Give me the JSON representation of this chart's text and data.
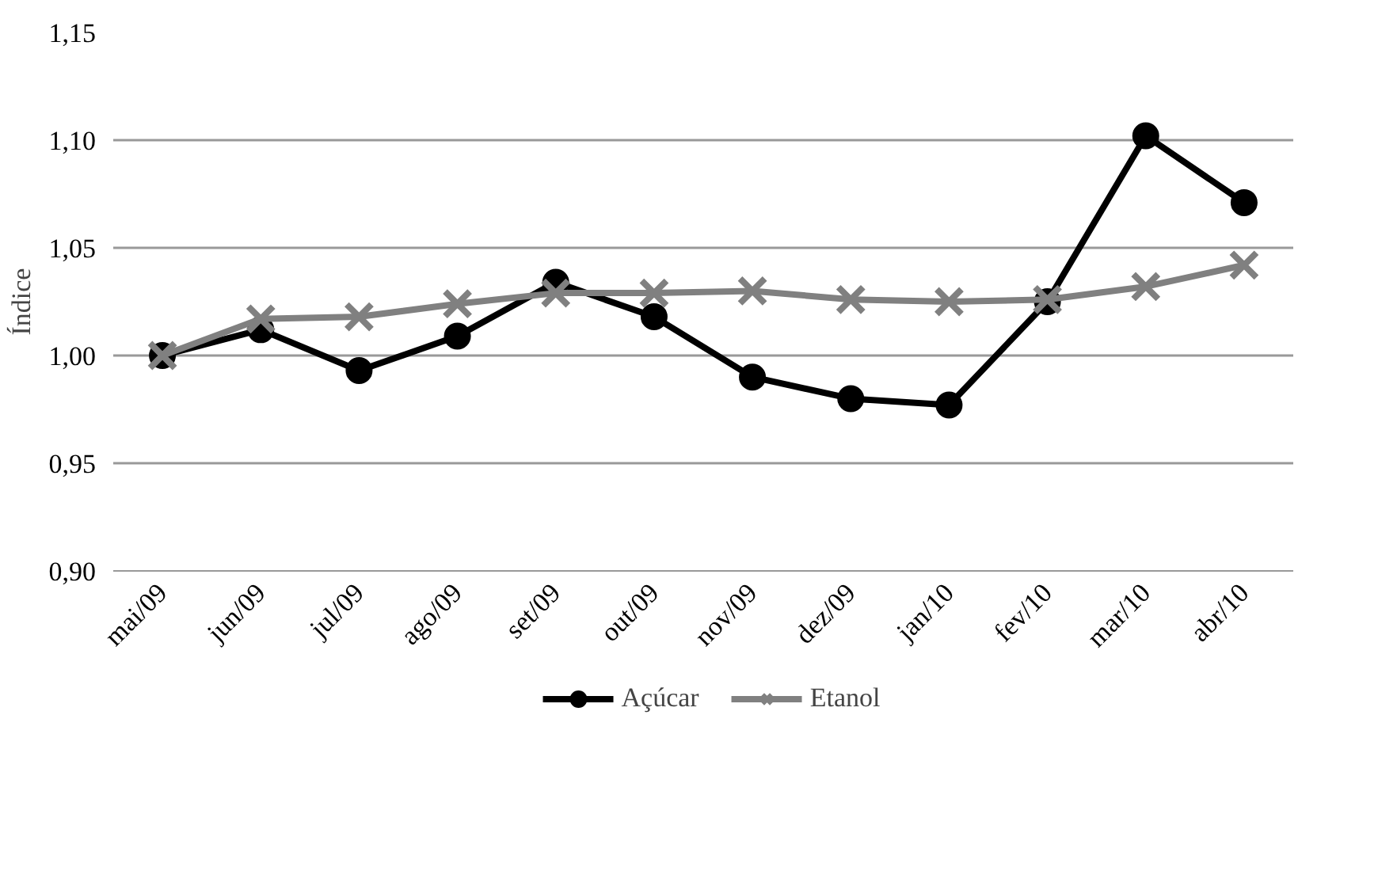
{
  "chart_data": {
    "type": "line",
    "ylabel": "Índice",
    "categories": [
      "mai/09",
      "jun/09",
      "jul/09",
      "ago/09",
      "set/09",
      "out/09",
      "nov/09",
      "dez/09",
      "jan/10",
      "fev/10",
      "mar/10",
      "abr/10"
    ],
    "series": [
      {
        "name": "Açúcar",
        "color": "#000000",
        "marker": "circle",
        "values": [
          1.0,
          1.012,
          0.993,
          1.009,
          1.034,
          1.018,
          0.99,
          0.98,
          0.977,
          1.025,
          1.102,
          1.071
        ]
      },
      {
        "name": "Etanol",
        "color": "#808080",
        "marker": "cross",
        "values": [
          1.0,
          1.017,
          1.018,
          1.024,
          1.029,
          1.029,
          1.03,
          1.026,
          1.025,
          1.026,
          1.032,
          1.042
        ]
      }
    ],
    "ylim": [
      0.9,
      1.15
    ],
    "yticks": [
      {
        "value": 0.9,
        "label": "0,90"
      },
      {
        "value": 0.95,
        "label": "0,95"
      },
      {
        "value": 1.0,
        "label": "1,00"
      },
      {
        "value": 1.05,
        "label": "1,05"
      },
      {
        "value": 1.1,
        "label": "1,10"
      },
      {
        "value": 1.15,
        "label": "1,15"
      }
    ],
    "grid": "y",
    "legend": "bottom",
    "line_style": "solid"
  }
}
